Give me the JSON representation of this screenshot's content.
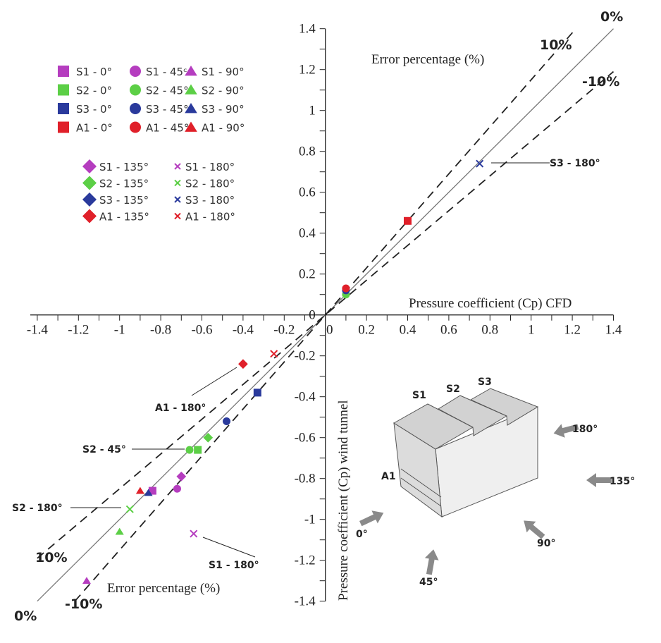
{
  "chart_data": {
    "type": "scatter",
    "xlabel": "Pressure coefficient (Cp) CFD",
    "ylabel": "Pressure coefficient (Cp) wind tunnel",
    "xlim": [
      -1.4,
      1.4
    ],
    "ylim": [
      -1.4,
      1.4
    ],
    "xticks": [
      "-1.4",
      "-1.2",
      "-1",
      "-0.8",
      "-0.6",
      "-0.4",
      "-0.2",
      "0",
      "0.2",
      "0.4",
      "0.6",
      "0.8",
      "1",
      "1.2",
      "1.4"
    ],
    "yticks": [
      "1.4",
      "1.2",
      "1",
      "0.8",
      "0.6",
      "0.4",
      "0.2",
      "0",
      "-0.2",
      "-0.4",
      "-0.6",
      "-0.8",
      "-1",
      "-1.2",
      "-1.4"
    ],
    "grid": false,
    "legend_placement": "top-left",
    "colors": {
      "S1": "#b53dbf",
      "S2": "#5ccf46",
      "S3": "#2a3a9c",
      "A1": "#e0202a"
    },
    "reference_lines": [
      {
        "label": "0%",
        "slope": 1.0,
        "style": "solid"
      },
      {
        "label": "10%",
        "slope": 1.15,
        "style": "dashed"
      },
      {
        "label": "-10%",
        "slope": 0.85,
        "style": "dashed"
      }
    ],
    "error_label_top": "Error percentage (%)",
    "error_label_bottom": "Error percentage (%)",
    "line_labels": {
      "top_0": "0%",
      "top_10": "10%",
      "top_m10": "-10%",
      "bot_0": "0%",
      "bot_10": "10%",
      "bot_m10": "-10%"
    },
    "series": [
      {
        "name": "S1 - 0°",
        "group": "S1",
        "marker": "square",
        "x": [
          -0.84
        ],
        "y": [
          -0.86
        ]
      },
      {
        "name": "S2 - 0°",
        "group": "S2",
        "marker": "square",
        "x": [
          -0.62
        ],
        "y": [
          -0.66
        ]
      },
      {
        "name": "S3 - 0°",
        "group": "S3",
        "marker": "square",
        "x": [
          -0.33
        ],
        "y": [
          -0.38
        ]
      },
      {
        "name": "A1 - 0°",
        "group": "A1",
        "marker": "square",
        "x": [
          0.4
        ],
        "y": [
          0.46
        ]
      },
      {
        "name": "S1 - 45°",
        "legend_text": "S1 - 45ᶜ",
        "group": "S1",
        "marker": "circle",
        "x": [
          -0.72
        ],
        "y": [
          -0.85
        ]
      },
      {
        "name": "S2 - 45°",
        "group": "S2",
        "marker": "circle",
        "x": [
          -0.66,
          0.1
        ],
        "y": [
          -0.66,
          0.1
        ]
      },
      {
        "name": "S3 - 45°",
        "group": "S3",
        "marker": "circle",
        "x": [
          -0.48,
          0.1
        ],
        "y": [
          -0.52,
          0.12
        ]
      },
      {
        "name": "A1 - 45°",
        "group": "A1",
        "marker": "circle",
        "x": [
          0.1
        ],
        "y": [
          0.13
        ]
      },
      {
        "name": "S1 - 90°",
        "group": "S1",
        "marker": "triangle",
        "x": [
          -1.16
        ],
        "y": [
          -1.3
        ]
      },
      {
        "name": "S2 - 90°",
        "group": "S2",
        "marker": "triangle",
        "x": [
          -1.0
        ],
        "y": [
          -1.06
        ]
      },
      {
        "name": "S3 - 90°",
        "group": "S3",
        "marker": "triangle",
        "x": [
          -0.86
        ],
        "y": [
          -0.87
        ]
      },
      {
        "name": "A1 - 90°",
        "group": "A1",
        "marker": "triangle",
        "x": [
          -0.9
        ],
        "y": [
          -0.86
        ]
      },
      {
        "name": "S1 - 135°",
        "group": "S1",
        "marker": "diamond",
        "x": [
          -0.7
        ],
        "y": [
          -0.79
        ]
      },
      {
        "name": "S2 - 135°",
        "group": "S2",
        "marker": "diamond",
        "x": [
          -0.57
        ],
        "y": [
          -0.6
        ]
      },
      {
        "name": "S3 - 135°",
        "group": "S3",
        "marker": "diamond",
        "x": [],
        "y": []
      },
      {
        "name": "A1 - 135°",
        "group": "A1",
        "marker": "diamond",
        "x": [
          -0.4
        ],
        "y": [
          -0.24
        ]
      },
      {
        "name": "S1 - 180°",
        "group": "S1",
        "marker": "x",
        "x": [
          -0.64
        ],
        "y": [
          -1.07
        ]
      },
      {
        "name": "S2 - 180°",
        "group": "S2",
        "marker": "x",
        "x": [
          -0.95
        ],
        "y": [
          -0.95
        ]
      },
      {
        "name": "S3 - 180°",
        "group": "S3",
        "marker": "x",
        "x": [
          0.75
        ],
        "y": [
          0.74
        ]
      },
      {
        "name": "A1 - 180°",
        "group": "A1",
        "marker": "x",
        "x": [
          -0.25
        ],
        "y": [
          -0.19
        ]
      }
    ],
    "annotations": [
      {
        "text": "S3 - 180°",
        "x": 0.75,
        "y": 0.74
      },
      {
        "text": "A1 - 180°",
        "x": -0.4,
        "y": -0.24
      },
      {
        "text": "S2 - 45°",
        "x": -0.66,
        "y": -0.66
      },
      {
        "text": "S2 - 180°",
        "x": -0.95,
        "y": -0.95
      },
      {
        "text": "S1 - 180°",
        "x": -0.64,
        "y": -1.07
      }
    ]
  },
  "diagram": {
    "surface_labels": [
      "S1",
      "S2",
      "S3",
      "A1"
    ],
    "wind_directions": [
      "0°",
      "45°",
      "90°",
      "135°",
      "180°"
    ],
    "arrow_color": "#8a8a8a"
  }
}
